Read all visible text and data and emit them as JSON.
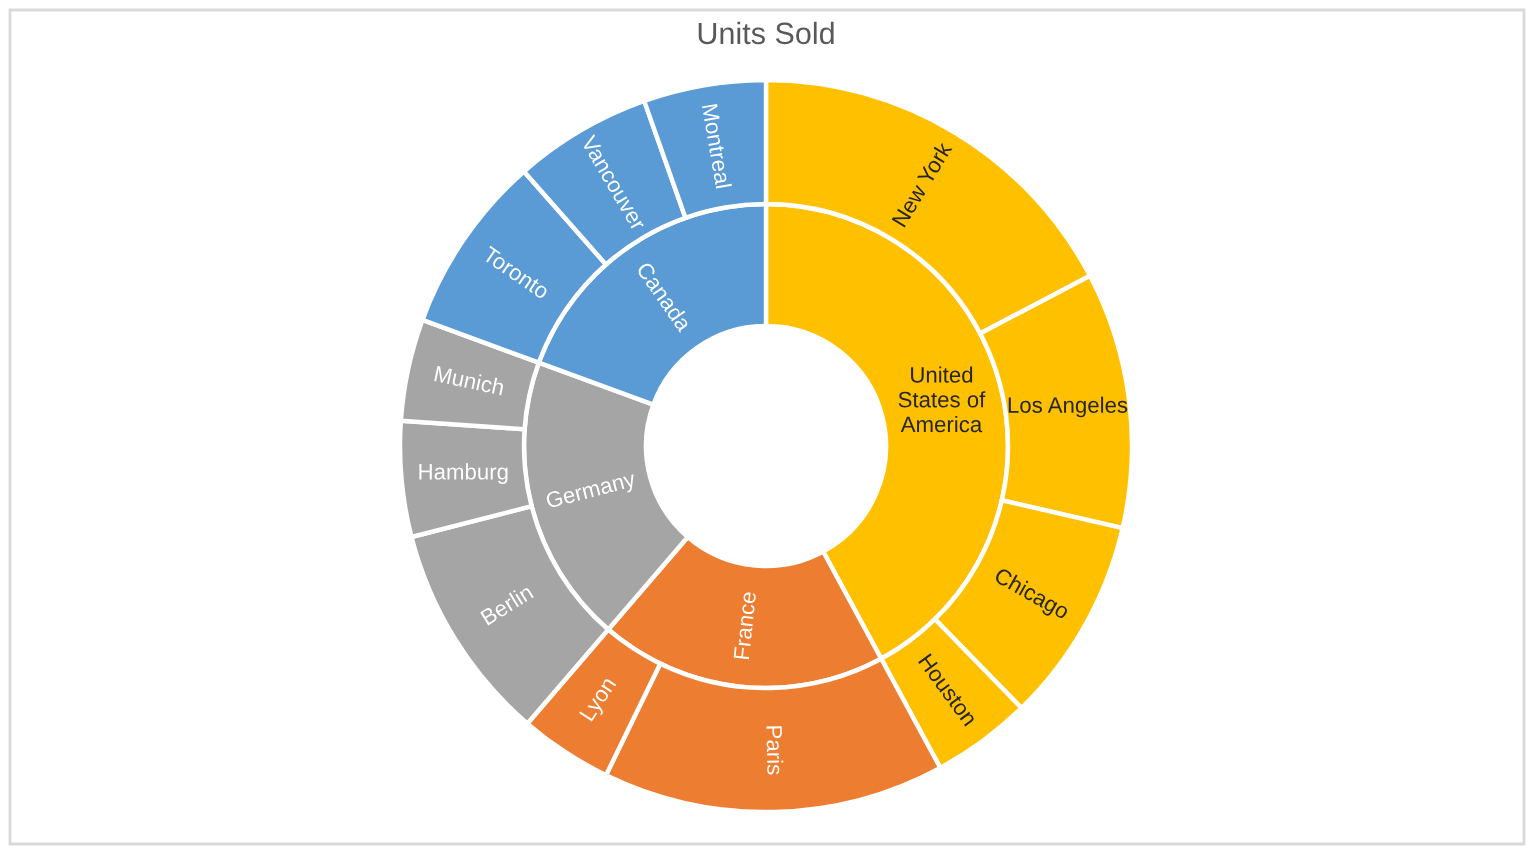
{
  "chart_data": {
    "type": "donut",
    "title": "Units Sold",
    "series": [
      {
        "values": [
          42.1,
          19.2,
          19.3,
          19.4
        ],
        "colors": [
          "#ffc000",
          "#ed7d31",
          "#a5a5a5",
          "#5b9bd5"
        ],
        "value_labels": [
          "United\nStates of\nAmerica",
          "France",
          "Germany",
          "Canada"
        ]
      },
      {
        "values": [
          17.3,
          11.3,
          9.1,
          4.4,
          15.1,
          4.1,
          9.7,
          5.1,
          4.5,
          7.9,
          6.1,
          5.4
        ],
        "colors": [
          "#ffc000",
          "#ffc000",
          "#ffc000",
          "#ffc000",
          "#ed7d31",
          "#ed7d31",
          "#a5a5a5",
          "#a5a5a5",
          "#a5a5a5",
          "#5b9bd5",
          "#5b9bd5",
          "#5b9bd5"
        ],
        "value_labels": [
          "New York",
          "Los Angeles",
          "Chicago",
          "Houston",
          "Paris",
          "Lyon",
          "Berlin",
          "Hamburg",
          "Munich",
          "Toronto",
          "Vancouver",
          "Montreal"
        ]
      }
    ]
  }
}
